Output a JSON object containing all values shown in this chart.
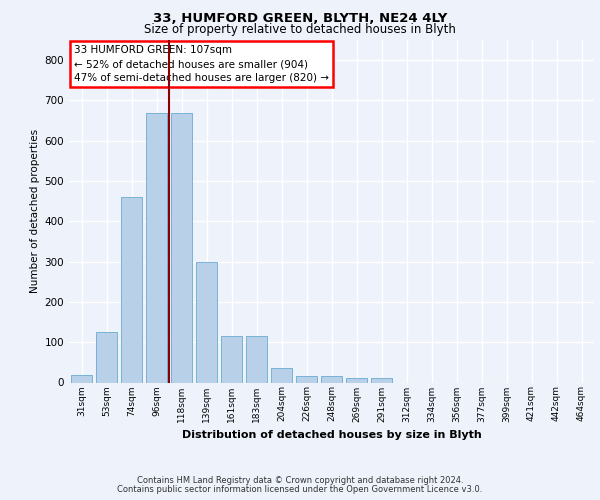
{
  "title1": "33, HUMFORD GREEN, BLYTH, NE24 4LY",
  "title2": "Size of property relative to detached houses in Blyth",
  "xlabel": "Distribution of detached houses by size in Blyth",
  "ylabel": "Number of detached properties",
  "categories": [
    "31sqm",
    "53sqm",
    "74sqm",
    "96sqm",
    "118sqm",
    "139sqm",
    "161sqm",
    "183sqm",
    "204sqm",
    "226sqm",
    "248sqm",
    "269sqm",
    "291sqm",
    "312sqm",
    "334sqm",
    "356sqm",
    "377sqm",
    "399sqm",
    "421sqm",
    "442sqm",
    "464sqm"
  ],
  "values": [
    18,
    125,
    460,
    670,
    670,
    300,
    115,
    115,
    35,
    15,
    15,
    10,
    10,
    0,
    0,
    0,
    0,
    0,
    0,
    0,
    0
  ],
  "bar_color": "#b8d0e8",
  "bar_edge_color": "#6aaad4",
  "vline_x": 3.5,
  "annotation_text": "33 HUMFORD GREEN: 107sqm\n← 52% of detached houses are smaller (904)\n47% of semi-detached houses are larger (820) →",
  "annotation_box_color": "white",
  "annotation_box_edge_color": "red",
  "vline_color": "#8b0000",
  "ylim": [
    0,
    850
  ],
  "yticks": [
    0,
    100,
    200,
    300,
    400,
    500,
    600,
    700,
    800
  ],
  "background_color": "#eef2fb",
  "grid_color": "#ffffff",
  "footer1": "Contains HM Land Registry data © Crown copyright and database right 2024.",
  "footer2": "Contains public sector information licensed under the Open Government Licence v3.0."
}
